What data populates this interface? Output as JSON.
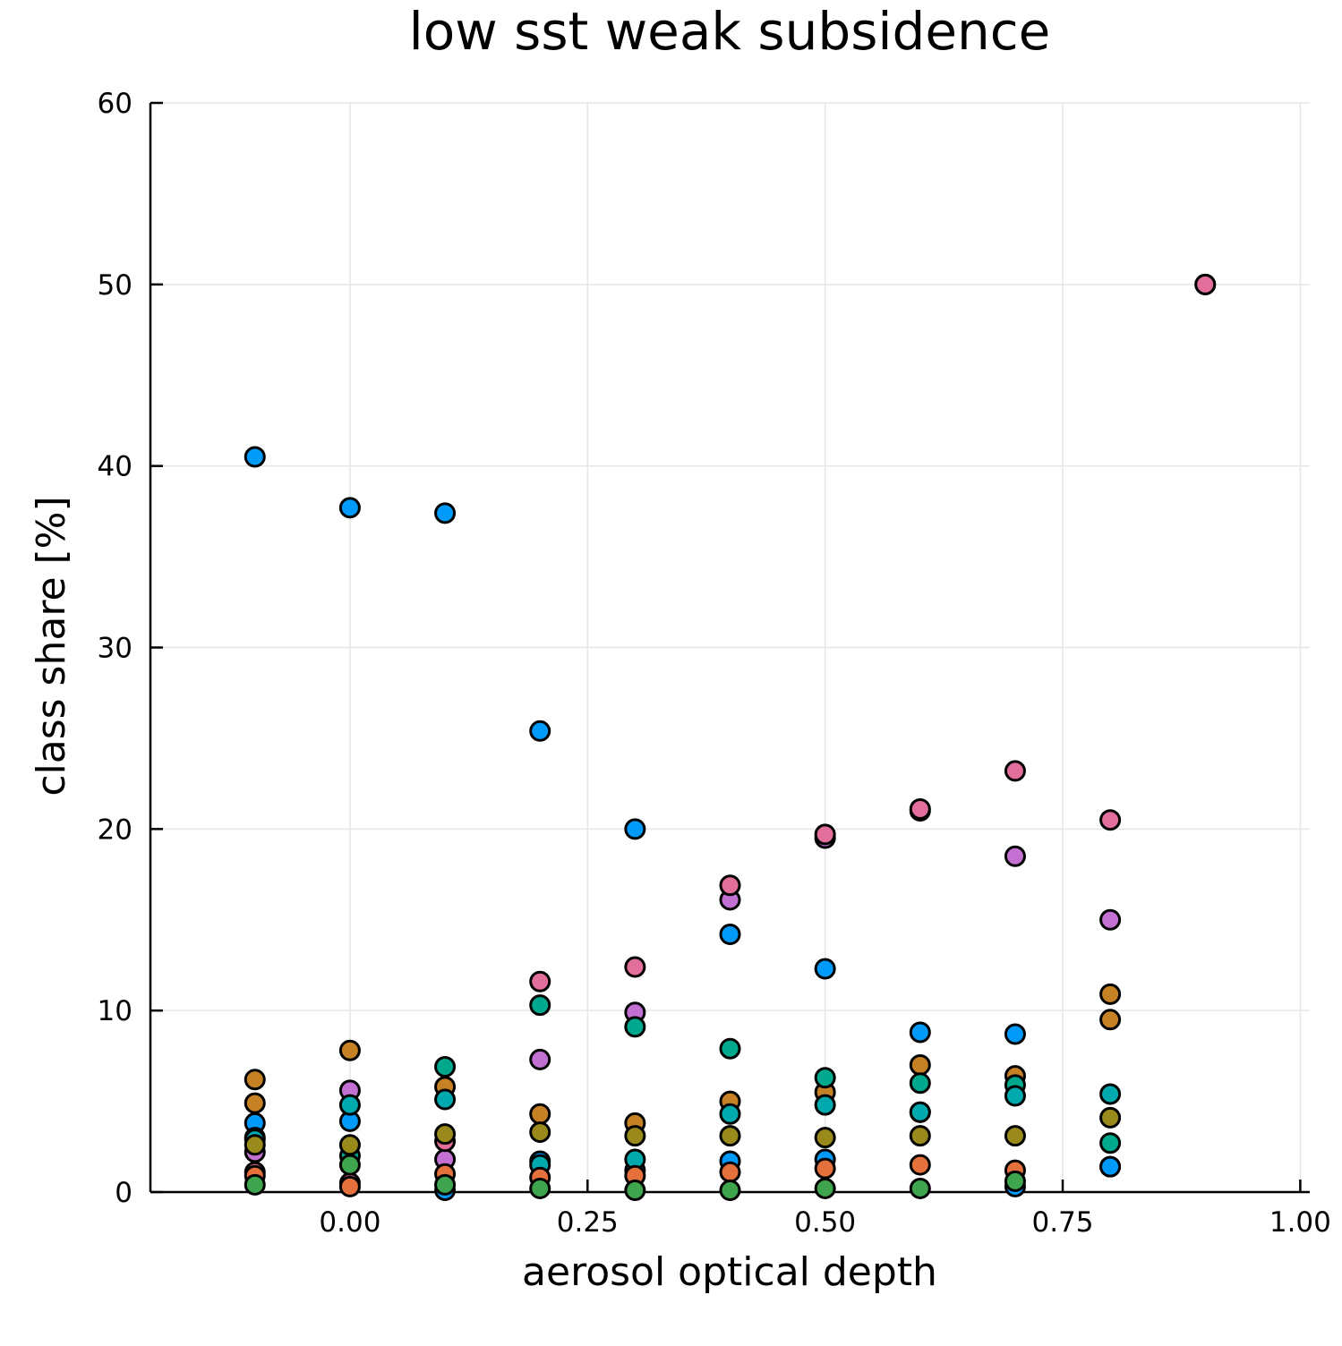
{
  "chart_data": {
    "type": "scatter",
    "title": "low sst weak subsidence",
    "xlabel": "aerosol optical depth",
    "ylabel": "class share [%]",
    "xlim": [
      -0.21,
      1.01
    ],
    "ylim": [
      0,
      60
    ],
    "xticks": [
      0.0,
      0.25,
      0.5,
      0.75,
      1.0
    ],
    "xtick_labels": [
      "0.00",
      "0.25",
      "0.50",
      "0.75",
      "1.00"
    ],
    "yticks": [
      0,
      10,
      20,
      30,
      40,
      50,
      60
    ],
    "ytick_labels": [
      "0",
      "10",
      "20",
      "30",
      "40",
      "50",
      "60"
    ],
    "grid": true,
    "legend": "none",
    "series": [
      {
        "color": "#009AFA",
        "x": [
          -0.1,
          0.0,
          0.1,
          0.2,
          0.3,
          0.4,
          0.5,
          0.6,
          0.7,
          0.8
        ],
        "y": [
          40.5,
          37.7,
          37.4,
          25.4,
          20.0,
          14.2,
          12.3,
          8.8,
          8.7,
          1.4
        ]
      },
      {
        "color": "#009AFA",
        "x": [
          -0.1,
          0.0,
          0.1,
          0.2,
          0.3,
          0.4,
          0.5,
          0.6,
          0.7,
          0.8
        ],
        "y": [
          3.8,
          3.9,
          0.1,
          1.7,
          1.2,
          1.7,
          1.8,
          4.4,
          0.3,
          1.4
        ]
      },
      {
        "color": "#C271D2",
        "x": [
          -0.1,
          0.0,
          0.1,
          0.2,
          0.3,
          0.4,
          0.5,
          0.6,
          0.7,
          0.8,
          0.9
        ],
        "y": [
          2.2,
          5.6,
          1.8,
          7.3,
          9.9,
          16.1,
          19.5,
          21.0,
          18.5,
          15.0,
          50.0
        ]
      },
      {
        "color": "#E26F9B",
        "x": [
          -0.1,
          0.0,
          0.1,
          0.2,
          0.3,
          0.4,
          0.5,
          0.6,
          0.7,
          0.8,
          0.9
        ],
        "y": [
          1.1,
          0.5,
          2.8,
          11.6,
          12.4,
          16.9,
          19.7,
          21.1,
          23.2,
          20.5,
          50.0
        ]
      },
      {
        "color": "#C68125",
        "x": [
          -0.1,
          -0.1,
          0.0,
          0.1,
          0.2,
          0.3,
          0.4,
          0.5,
          0.6,
          0.7,
          0.8,
          0.8
        ],
        "y": [
          6.2,
          4.9,
          7.8,
          5.8,
          4.3,
          3.8,
          5.0,
          5.5,
          7.0,
          6.4,
          10.9,
          9.5
        ]
      },
      {
        "color": "#00A98D",
        "x": [
          -0.1,
          0.0,
          0.1,
          0.2,
          0.3,
          0.4,
          0.5,
          0.6,
          0.7,
          0.8
        ],
        "y": [
          3.0,
          2.0,
          6.9,
          10.3,
          9.1,
          7.9,
          6.3,
          6.0,
          5.9,
          2.7
        ]
      },
      {
        "color": "#00A9AD",
        "x": [
          -0.1,
          0.0,
          0.1,
          0.2,
          0.3,
          0.4,
          0.5,
          0.6,
          0.7,
          0.8
        ],
        "y": [
          2.9,
          4.8,
          5.1,
          1.5,
          1.8,
          4.3,
          4.8,
          4.4,
          5.3,
          5.4
        ]
      },
      {
        "color": "#9A8A1B",
        "x": [
          -0.1,
          0.0,
          0.1,
          0.2,
          0.3,
          0.4,
          0.5,
          0.6,
          0.7,
          0.8
        ],
        "y": [
          2.6,
          2.6,
          3.2,
          3.3,
          3.1,
          3.1,
          3.0,
          3.1,
          3.1,
          4.1
        ]
      },
      {
        "color": "#E4713C",
        "x": [
          -0.1,
          0.0,
          0.1,
          0.2,
          0.3,
          0.4,
          0.5,
          0.6,
          0.7
        ],
        "y": [
          0.9,
          0.3,
          1.0,
          0.8,
          0.9,
          1.1,
          1.3,
          1.5,
          1.2
        ]
      },
      {
        "color": "#3EA44E",
        "x": [
          -0.1,
          0.0,
          0.1,
          0.2,
          0.3,
          0.4,
          0.5,
          0.6,
          0.7
        ],
        "y": [
          0.4,
          1.5,
          0.4,
          0.2,
          0.1,
          0.1,
          0.2,
          0.2,
          0.6
        ]
      }
    ]
  }
}
